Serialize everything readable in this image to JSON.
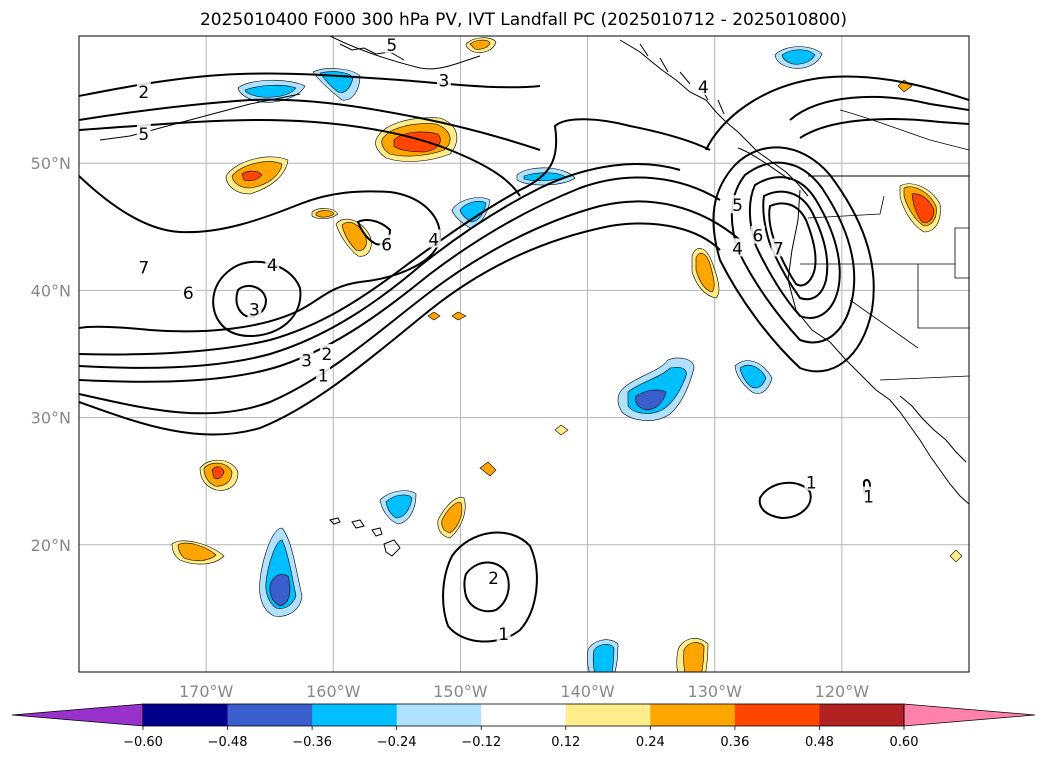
{
  "title": "2025010400 F000 300 hPa PV, IVT Landfall PC (2025010712 - 2025010800)",
  "map": {
    "projection": "PlateCarree",
    "lon_range": [
      -180,
      -110
    ],
    "lat_range": [
      10,
      60
    ],
    "gridlines": true,
    "lon_ticks": [
      {
        "lon": -170,
        "label": "170°W"
      },
      {
        "lon": -160,
        "label": "160°W"
      },
      {
        "lon": -150,
        "label": "150°W"
      },
      {
        "lon": -140,
        "label": "140°W"
      },
      {
        "lon": -130,
        "label": "130°W"
      },
      {
        "lon": -120,
        "label": "120°W"
      }
    ],
    "lat_ticks": [
      {
        "lat": 20,
        "label": "20°N"
      },
      {
        "lat": 30,
        "label": "30°N"
      },
      {
        "lat": 40,
        "label": "40°N"
      },
      {
        "lat": 50,
        "label": "50°N"
      }
    ],
    "contour_labels": [
      {
        "text": "2",
        "lon": -174.9,
        "lat": 55.6
      },
      {
        "text": "5",
        "lon": -174.9,
        "lat": 52.3
      },
      {
        "text": "3",
        "lon": -151.3,
        "lat": 56.5
      },
      {
        "text": "5",
        "lon": -155.4,
        "lat": 59.3
      },
      {
        "text": "4",
        "lon": -130.9,
        "lat": 56.0
      },
      {
        "text": "6",
        "lon": -155.8,
        "lat": 43.6
      },
      {
        "text": "4",
        "lon": -152.1,
        "lat": 44.0
      },
      {
        "text": "6",
        "lon": -171.4,
        "lat": 39.8
      },
      {
        "text": "4",
        "lon": -164.8,
        "lat": 42.0
      },
      {
        "text": "3",
        "lon": -166.2,
        "lat": 38.5
      },
      {
        "text": "7",
        "lon": -174.9,
        "lat": 41.8
      },
      {
        "text": "3",
        "lon": -162.1,
        "lat": 34.5
      },
      {
        "text": "2",
        "lon": -160.5,
        "lat": 35.0
      },
      {
        "text": "1",
        "lon": -160.8,
        "lat": 33.3
      },
      {
        "text": "5",
        "lon": -128.2,
        "lat": 46.7
      },
      {
        "text": "6",
        "lon": -126.6,
        "lat": 44.3
      },
      {
        "text": "4",
        "lon": -128.2,
        "lat": 43.3
      },
      {
        "text": "7",
        "lon": -125.0,
        "lat": 43.3
      },
      {
        "text": "1",
        "lon": -122.4,
        "lat": 24.9
      },
      {
        "text": "1",
        "lon": -117.9,
        "lat": 23.8
      },
      {
        "text": "2",
        "lon": -147.4,
        "lat": 17.4
      },
      {
        "text": "1",
        "lon": -146.6,
        "lat": 13.0
      }
    ]
  },
  "colorbar": {
    "levels": [
      -0.6,
      -0.48,
      -0.36,
      -0.24,
      -0.12,
      0.12,
      0.24,
      0.36,
      0.48,
      0.6
    ],
    "tick_labels": [
      "−0.60",
      "−0.48",
      "−0.36",
      "−0.24",
      "−0.12",
      "0.12",
      "0.24",
      "0.36",
      "0.48",
      "0.60"
    ],
    "colors": [
      "#9932cc",
      "#00008b",
      "#3a5fcd",
      "#00bfff",
      "#b0e2ff",
      "#ffffff",
      "#ffec8b",
      "#ffa500",
      "#ff4500",
      "#b22222",
      "#ff82ab"
    ],
    "extend": "both"
  }
}
